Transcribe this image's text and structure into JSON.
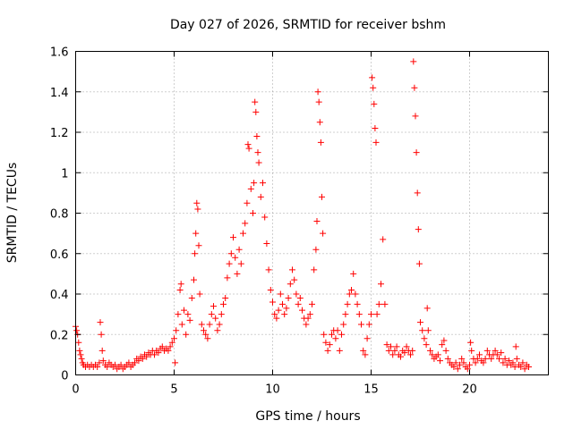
{
  "chart_data": {
    "type": "scatter",
    "title": "Day 027 of 2026, SRMTID for receiver bshm",
    "xlabel": "GPS time / hours",
    "ylabel": "SRMTID / TECUs",
    "xlim": [
      0,
      24
    ],
    "ylim": [
      0,
      1.6
    ],
    "xticks": [
      0,
      5,
      10,
      15,
      20
    ],
    "yticks": [
      0,
      0.2,
      0.4,
      0.6,
      0.8,
      1,
      1.2,
      1.4,
      1.6
    ],
    "xtick_labels": [
      "0",
      "5",
      "10",
      "15",
      "20"
    ],
    "ytick_labels": [
      "0",
      "0.2",
      "0.4",
      "0.6",
      "0.8",
      "1",
      "1.2",
      "1.4",
      "1.6"
    ],
    "grid": true,
    "marker": "plus",
    "color": "#ff0000",
    "series": [
      {
        "name": "bshm",
        "points": [
          [
            0.0,
            0.24
          ],
          [
            0.05,
            0.22
          ],
          [
            0.1,
            0.2
          ],
          [
            0.15,
            0.16
          ],
          [
            0.2,
            0.12
          ],
          [
            0.25,
            0.1
          ],
          [
            0.3,
            0.08
          ],
          [
            0.35,
            0.06
          ],
          [
            0.4,
            0.05
          ],
          [
            0.5,
            0.04
          ],
          [
            0.6,
            0.05
          ],
          [
            0.7,
            0.04
          ],
          [
            0.8,
            0.05
          ],
          [
            0.9,
            0.04
          ],
          [
            1.0,
            0.05
          ],
          [
            1.1,
            0.04
          ],
          [
            1.2,
            0.06
          ],
          [
            1.25,
            0.26
          ],
          [
            1.3,
            0.2
          ],
          [
            1.35,
            0.12
          ],
          [
            1.4,
            0.07
          ],
          [
            1.5,
            0.05
          ],
          [
            1.6,
            0.04
          ],
          [
            1.7,
            0.06
          ],
          [
            1.8,
            0.05
          ],
          [
            1.9,
            0.04
          ],
          [
            2.0,
            0.05
          ],
          [
            2.1,
            0.03
          ],
          [
            2.2,
            0.04
          ],
          [
            2.3,
            0.05
          ],
          [
            2.4,
            0.03
          ],
          [
            2.5,
            0.04
          ],
          [
            2.6,
            0.05
          ],
          [
            2.7,
            0.06
          ],
          [
            2.8,
            0.04
          ],
          [
            2.9,
            0.05
          ],
          [
            3.0,
            0.06
          ],
          [
            3.1,
            0.08
          ],
          [
            3.2,
            0.07
          ],
          [
            3.3,
            0.09
          ],
          [
            3.4,
            0.08
          ],
          [
            3.5,
            0.1
          ],
          [
            3.6,
            0.09
          ],
          [
            3.7,
            0.11
          ],
          [
            3.8,
            0.1
          ],
          [
            3.9,
            0.12
          ],
          [
            4.0,
            0.1
          ],
          [
            4.1,
            0.12
          ],
          [
            4.2,
            0.11
          ],
          [
            4.3,
            0.13
          ],
          [
            4.4,
            0.14
          ],
          [
            4.5,
            0.12
          ],
          [
            4.6,
            0.13
          ],
          [
            4.7,
            0.12
          ],
          [
            4.8,
            0.14
          ],
          [
            4.9,
            0.16
          ],
          [
            5.0,
            0.18
          ],
          [
            5.05,
            0.06
          ],
          [
            5.1,
            0.22
          ],
          [
            5.2,
            0.3
          ],
          [
            5.3,
            0.42
          ],
          [
            5.35,
            0.45
          ],
          [
            5.4,
            0.25
          ],
          [
            5.5,
            0.32
          ],
          [
            5.6,
            0.2
          ],
          [
            5.7,
            0.3
          ],
          [
            5.8,
            0.27
          ],
          [
            5.9,
            0.38
          ],
          [
            6.0,
            0.47
          ],
          [
            6.05,
            0.6
          ],
          [
            6.1,
            0.7
          ],
          [
            6.15,
            0.85
          ],
          [
            6.2,
            0.82
          ],
          [
            6.25,
            0.64
          ],
          [
            6.3,
            0.4
          ],
          [
            6.4,
            0.25
          ],
          [
            6.5,
            0.22
          ],
          [
            6.6,
            0.2
          ],
          [
            6.7,
            0.18
          ],
          [
            6.8,
            0.25
          ],
          [
            6.9,
            0.3
          ],
          [
            7.0,
            0.34
          ],
          [
            7.1,
            0.28
          ],
          [
            7.2,
            0.22
          ],
          [
            7.3,
            0.25
          ],
          [
            7.4,
            0.3
          ],
          [
            7.5,
            0.35
          ],
          [
            7.6,
            0.38
          ],
          [
            7.7,
            0.48
          ],
          [
            7.8,
            0.55
          ],
          [
            7.9,
            0.6
          ],
          [
            8.0,
            0.68
          ],
          [
            8.1,
            0.58
          ],
          [
            8.2,
            0.5
          ],
          [
            8.3,
            0.62
          ],
          [
            8.4,
            0.55
          ],
          [
            8.5,
            0.7
          ],
          [
            8.6,
            0.75
          ],
          [
            8.7,
            0.85
          ],
          [
            8.75,
            1.14
          ],
          [
            8.8,
            1.12
          ],
          [
            8.9,
            0.92
          ],
          [
            9.0,
            0.8
          ],
          [
            9.05,
            0.95
          ],
          [
            9.1,
            1.35
          ],
          [
            9.15,
            1.3
          ],
          [
            9.2,
            1.18
          ],
          [
            9.25,
            1.1
          ],
          [
            9.3,
            1.05
          ],
          [
            9.4,
            0.88
          ],
          [
            9.5,
            0.95
          ],
          [
            9.6,
            0.78
          ],
          [
            9.7,
            0.65
          ],
          [
            9.8,
            0.52
          ],
          [
            9.9,
            0.42
          ],
          [
            10.0,
            0.36
          ],
          [
            10.1,
            0.3
          ],
          [
            10.2,
            0.28
          ],
          [
            10.3,
            0.32
          ],
          [
            10.4,
            0.4
          ],
          [
            10.5,
            0.35
          ],
          [
            10.6,
            0.3
          ],
          [
            10.7,
            0.33
          ],
          [
            10.8,
            0.38
          ],
          [
            10.9,
            0.45
          ],
          [
            11.0,
            0.52
          ],
          [
            11.1,
            0.47
          ],
          [
            11.2,
            0.4
          ],
          [
            11.3,
            0.35
          ],
          [
            11.4,
            0.38
          ],
          [
            11.5,
            0.32
          ],
          [
            11.6,
            0.28
          ],
          [
            11.7,
            0.25
          ],
          [
            11.8,
            0.28
          ],
          [
            11.9,
            0.3
          ],
          [
            12.0,
            0.35
          ],
          [
            12.1,
            0.52
          ],
          [
            12.2,
            0.62
          ],
          [
            12.25,
            0.76
          ],
          [
            12.3,
            1.4
          ],
          [
            12.35,
            1.35
          ],
          [
            12.4,
            1.25
          ],
          [
            12.45,
            1.15
          ],
          [
            12.5,
            0.88
          ],
          [
            12.55,
            0.7
          ],
          [
            12.6,
            0.2
          ],
          [
            12.7,
            0.16
          ],
          [
            12.8,
            0.12
          ],
          [
            12.9,
            0.15
          ],
          [
            13.0,
            0.2
          ],
          [
            13.1,
            0.22
          ],
          [
            13.2,
            0.18
          ],
          [
            13.3,
            0.22
          ],
          [
            13.4,
            0.12
          ],
          [
            13.5,
            0.2
          ],
          [
            13.6,
            0.25
          ],
          [
            13.7,
            0.3
          ],
          [
            13.8,
            0.35
          ],
          [
            13.9,
            0.4
          ],
          [
            14.0,
            0.42
          ],
          [
            14.1,
            0.5
          ],
          [
            14.2,
            0.4
          ],
          [
            14.3,
            0.35
          ],
          [
            14.4,
            0.3
          ],
          [
            14.5,
            0.25
          ],
          [
            14.6,
            0.12
          ],
          [
            14.7,
            0.1
          ],
          [
            14.8,
            0.18
          ],
          [
            14.9,
            0.25
          ],
          [
            15.0,
            0.3
          ],
          [
            15.05,
            1.47
          ],
          [
            15.1,
            1.42
          ],
          [
            15.15,
            1.34
          ],
          [
            15.2,
            1.22
          ],
          [
            15.25,
            1.15
          ],
          [
            15.3,
            0.3
          ],
          [
            15.4,
            0.35
          ],
          [
            15.5,
            0.45
          ],
          [
            15.6,
            0.67
          ],
          [
            15.7,
            0.35
          ],
          [
            15.8,
            0.15
          ],
          [
            15.9,
            0.12
          ],
          [
            16.0,
            0.14
          ],
          [
            16.1,
            0.1
          ],
          [
            16.2,
            0.12
          ],
          [
            16.3,
            0.14
          ],
          [
            16.4,
            0.1
          ],
          [
            16.5,
            0.09
          ],
          [
            16.6,
            0.12
          ],
          [
            16.7,
            0.11
          ],
          [
            16.8,
            0.14
          ],
          [
            16.9,
            0.12
          ],
          [
            17.0,
            0.1
          ],
          [
            17.1,
            0.12
          ],
          [
            17.15,
            1.55
          ],
          [
            17.2,
            1.42
          ],
          [
            17.25,
            1.28
          ],
          [
            17.3,
            1.1
          ],
          [
            17.35,
            0.9
          ],
          [
            17.4,
            0.72
          ],
          [
            17.45,
            0.55
          ],
          [
            17.5,
            0.26
          ],
          [
            17.6,
            0.22
          ],
          [
            17.7,
            0.18
          ],
          [
            17.8,
            0.15
          ],
          [
            17.85,
            0.33
          ],
          [
            17.9,
            0.22
          ],
          [
            18.0,
            0.12
          ],
          [
            18.1,
            0.1
          ],
          [
            18.2,
            0.08
          ],
          [
            18.3,
            0.09
          ],
          [
            18.4,
            0.1
          ],
          [
            18.5,
            0.07
          ],
          [
            18.6,
            0.15
          ],
          [
            18.7,
            0.17
          ],
          [
            18.8,
            0.12
          ],
          [
            18.9,
            0.08
          ],
          [
            19.0,
            0.06
          ],
          [
            19.1,
            0.05
          ],
          [
            19.2,
            0.04
          ],
          [
            19.3,
            0.06
          ],
          [
            19.4,
            0.03
          ],
          [
            19.5,
            0.05
          ],
          [
            19.6,
            0.08
          ],
          [
            19.7,
            0.06
          ],
          [
            19.8,
            0.04
          ],
          [
            19.9,
            0.03
          ],
          [
            20.0,
            0.05
          ],
          [
            20.05,
            0.16
          ],
          [
            20.1,
            0.12
          ],
          [
            20.2,
            0.08
          ],
          [
            20.3,
            0.06
          ],
          [
            20.4,
            0.08
          ],
          [
            20.5,
            0.1
          ],
          [
            20.6,
            0.07
          ],
          [
            20.7,
            0.06
          ],
          [
            20.8,
            0.08
          ],
          [
            20.9,
            0.12
          ],
          [
            21.0,
            0.1
          ],
          [
            21.1,
            0.08
          ],
          [
            21.2,
            0.1
          ],
          [
            21.3,
            0.12
          ],
          [
            21.4,
            0.1
          ],
          [
            21.5,
            0.08
          ],
          [
            21.6,
            0.11
          ],
          [
            21.7,
            0.06
          ],
          [
            21.8,
            0.08
          ],
          [
            21.9,
            0.05
          ],
          [
            22.0,
            0.07
          ],
          [
            22.1,
            0.05
          ],
          [
            22.2,
            0.06
          ],
          [
            22.3,
            0.04
          ],
          [
            22.35,
            0.14
          ],
          [
            22.4,
            0.08
          ],
          [
            22.5,
            0.05
          ],
          [
            22.6,
            0.04
          ],
          [
            22.7,
            0.06
          ],
          [
            22.8,
            0.03
          ],
          [
            22.9,
            0.05
          ],
          [
            23.0,
            0.04
          ]
        ]
      }
    ]
  }
}
